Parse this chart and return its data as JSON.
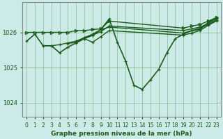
{
  "bg_color": "#cceae7",
  "grid_color": "#88bb88",
  "line_color": "#1a5c1a",
  "title": "Graphe pression niveau de la mer (hPa)",
  "ylim": [
    1023.6,
    1026.85
  ],
  "xlim": [
    -0.5,
    23.5
  ],
  "xticks": [
    0,
    1,
    2,
    3,
    4,
    5,
    6,
    7,
    8,
    9,
    10,
    11,
    12,
    13,
    14,
    15,
    16,
    17,
    18,
    19,
    20,
    21,
    22,
    23
  ],
  "yticks": [
    1024,
    1025,
    1026
  ],
  "lines": [
    {
      "x": [
        0,
        1,
        2,
        3,
        4,
        5,
        6,
        7,
        8,
        9,
        10,
        11,
        12,
        13,
        14,
        15,
        16,
        17,
        18,
        19,
        20,
        21,
        22,
        23
      ],
      "y": [
        1025.75,
        1025.95,
        1025.62,
        1025.62,
        1025.42,
        1025.58,
        1025.7,
        1025.82,
        1025.92,
        1026.08,
        1026.38,
        1025.72,
        1025.18,
        1024.5,
        1024.38,
        1024.65,
        1024.95,
        1025.42,
        1025.82,
        1025.95,
        1026.05,
        1026.08,
        1026.28,
        1026.42
      ],
      "marker": "+",
      "lw": 1.2
    },
    {
      "x": [
        0,
        1,
        2,
        3,
        4,
        5,
        6,
        7,
        8,
        9,
        10,
        19,
        20,
        21,
        22,
        23
      ],
      "y": [
        1026.0,
        1026.0,
        1026.0,
        1026.0,
        1026.0,
        1026.0,
        1026.05,
        1026.05,
        1026.08,
        1026.1,
        1026.32,
        1026.12,
        1026.18,
        1026.22,
        1026.32,
        1026.42
      ],
      "marker": ">",
      "lw": 1.0
    },
    {
      "x": [
        2,
        3,
        4,
        5,
        6,
        7,
        8,
        9,
        10,
        19,
        20,
        21,
        22,
        23
      ],
      "y": [
        1025.62,
        1025.62,
        1025.65,
        1025.7,
        1025.75,
        1025.85,
        1025.92,
        1026.02,
        1026.18,
        1026.05,
        1026.1,
        1026.15,
        1026.25,
        1026.38
      ],
      "marker": "+",
      "lw": 1.0
    },
    {
      "x": [
        5,
        6,
        7,
        8,
        9,
        10,
        19,
        20,
        21,
        22,
        23
      ],
      "y": [
        1025.68,
        1025.72,
        1025.85,
        1025.95,
        1026.08,
        1026.15,
        1025.98,
        1026.05,
        1026.12,
        1026.22,
        1026.35
      ],
      "marker": "+",
      "lw": 1.0
    },
    {
      "x": [
        7,
        8,
        9,
        10,
        19,
        20,
        21,
        22,
        23
      ],
      "y": [
        1025.82,
        1025.72,
        1025.88,
        1026.05,
        1025.92,
        1025.98,
        1026.05,
        1026.2,
        1026.32
      ],
      "marker": "+",
      "lw": 1.0
    }
  ]
}
